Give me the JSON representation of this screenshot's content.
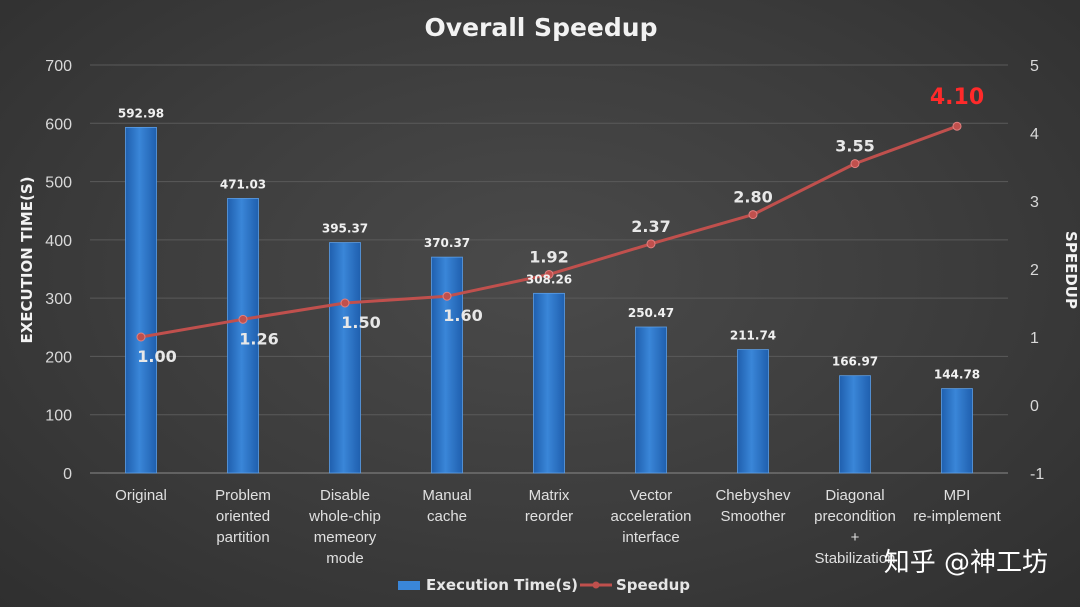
{
  "colors": {
    "bar": "#3a86d8",
    "bar_dark": "#1f5fae",
    "line": "#c0504d",
    "highlight": "#ff2a2a",
    "grid": "#5a5a5a"
  },
  "watermark": "知乎 @神工坊",
  "chart_data": {
    "type": "bar",
    "title": "Overall Speedup",
    "categories": [
      [
        "Original"
      ],
      [
        "Problem",
        "oriented",
        "partition"
      ],
      [
        "Disable",
        "whole-chip",
        "memeory",
        "mode"
      ],
      [
        "Manual",
        "cache"
      ],
      [
        "Matrix",
        "reorder"
      ],
      [
        "Vector",
        "acceleration",
        "interface"
      ],
      [
        "Chebyshev",
        "Smoother"
      ],
      [
        "Diagonal",
        "precondition",
        "+",
        "Stabilization"
      ],
      [
        "MPI",
        "re-implement"
      ]
    ],
    "series": [
      {
        "name": "Execution Time(s)",
        "type": "bar",
        "axis": "left",
        "values": [
          592.98,
          471.03,
          395.37,
          370.37,
          308.26,
          250.47,
          211.74,
          166.97,
          144.78
        ],
        "labels": [
          "592.98",
          "471.03",
          "395.37",
          "370.37",
          "308.26",
          "250.47",
          "211.74",
          "166.97",
          "144.78"
        ]
      },
      {
        "name": "Speedup",
        "type": "line",
        "axis": "right",
        "values": [
          1.0,
          1.26,
          1.5,
          1.6,
          1.92,
          2.37,
          2.8,
          3.55,
          4.1
        ],
        "labels": [
          "1.00",
          "1.26",
          "1.50",
          "1.60",
          "1.92",
          "2.37",
          "2.80",
          "3.55",
          "4.10"
        ],
        "label_position": [
          "below",
          "below",
          "below",
          "below",
          "above",
          "above",
          "above",
          "above",
          "above"
        ]
      }
    ],
    "ylabel": "EXECUTION TIME(S)",
    "y2label": "SPEEDUP",
    "ylim": [
      0,
      700
    ],
    "y_ticks": [
      0,
      100,
      200,
      300,
      400,
      500,
      600,
      700
    ],
    "y2lim": [
      -1,
      5
    ],
    "y2_ticks": [
      -1,
      0,
      1,
      2,
      3,
      4,
      5
    ],
    "grid": true,
    "legend": [
      "Execution Time(s)",
      "Speedup"
    ],
    "legend_position": "bottom"
  }
}
